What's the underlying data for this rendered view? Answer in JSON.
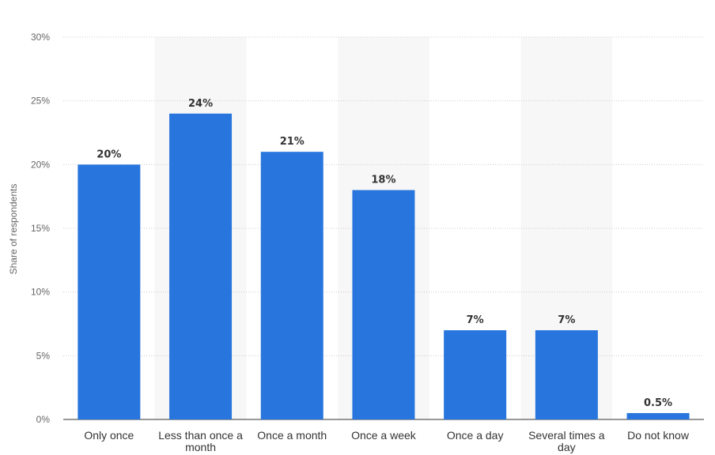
{
  "chart_data": {
    "type": "bar",
    "categories": [
      "Only once",
      "Less than once a month",
      "Once a month",
      "Once a week",
      "Once a day",
      "Several times a day",
      "Do not know"
    ],
    "category_lines": [
      [
        "Only once"
      ],
      [
        "Less than once a",
        "month"
      ],
      [
        "Once a month"
      ],
      [
        "Once a week"
      ],
      [
        "Once a day"
      ],
      [
        "Several times a",
        "day"
      ],
      [
        "Do not know"
      ]
    ],
    "values": [
      20,
      24,
      21,
      18,
      7,
      7,
      0.5
    ],
    "data_labels": [
      "20%",
      "24%",
      "21%",
      "18%",
      "7%",
      "7%",
      "0.5%"
    ],
    "ylabel": "Share of respondents",
    "yticks": [
      0,
      5,
      10,
      15,
      20,
      25,
      30
    ],
    "ytick_labels": [
      "0%",
      "5%",
      "10%",
      "15%",
      "20%",
      "25%",
      "30%"
    ],
    "ylim": [
      0,
      30
    ],
    "grid": true,
    "bar_color": "#2876dd",
    "band_color": "#f7f7f7",
    "legend": "none"
  }
}
